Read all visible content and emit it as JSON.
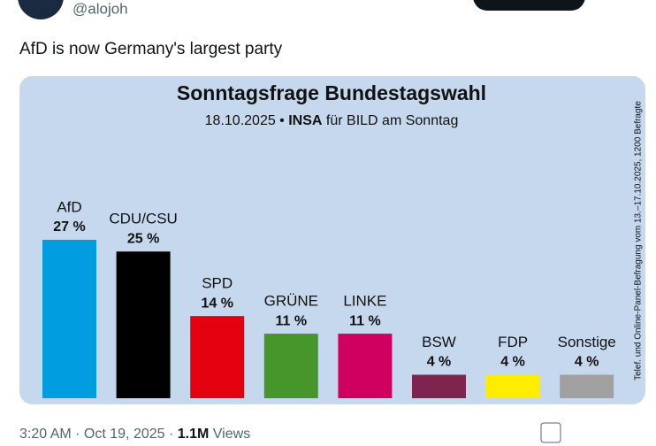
{
  "tweet": {
    "handle": "@alojoh",
    "text": "AfD is now Germany's largest party",
    "timestamp": "3:20 AM · Oct 19, 2025 ·",
    "views_count": "1.1M",
    "views_label": "Views"
  },
  "chart_data": {
    "type": "bar",
    "title": "Sonntagsfrage Bundestagswahl",
    "subtitle": [
      "18.10.2025 •",
      "INSA",
      "für BILD am Sonntag"
    ],
    "note": "Telef. und Online-Panel-Befragung vom 13.–17.10.2025, 1200 Befragte",
    "categories": [
      "AfD",
      "CDU/CSU",
      "SPD",
      "GRÜNE",
      "LINKE",
      "BSW",
      "FDP",
      "Sonstige"
    ],
    "values": [
      27,
      25,
      14,
      11,
      11,
      4,
      4,
      4
    ],
    "value_labels": [
      "27 %",
      "25 %",
      "14 %",
      "11 %",
      "11 %",
      "4 %",
      "4 %",
      "4 %"
    ],
    "colors": [
      "#009ee0",
      "#000000",
      "#e3000f",
      "#46962b",
      "#d0005f",
      "#7d254f",
      "#ffed00",
      "#a0a0a0"
    ]
  }
}
